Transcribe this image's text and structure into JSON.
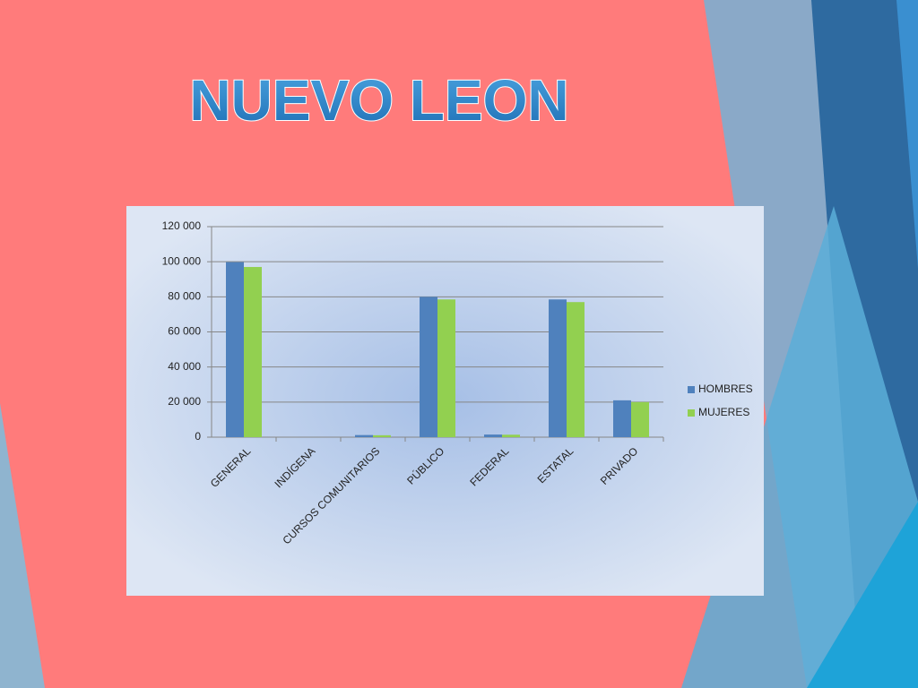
{
  "chart_data": {
    "type": "bar",
    "title": "NUEVO LEON",
    "categories": [
      "GENERAL",
      "INDÍGENA",
      "CURSOS COMUNITARIOS",
      "PÚBLICO",
      "FEDERAL",
      "ESTATAL",
      "PRIVADO"
    ],
    "series": [
      {
        "name": "HOMBRES",
        "color": "#4f81bd",
        "values": [
          99800,
          0,
          1200,
          80000,
          1500,
          78500,
          21000
        ]
      },
      {
        "name": "MUJERES",
        "color": "#92d050",
        "values": [
          97000,
          0,
          1100,
          78500,
          1400,
          77000,
          20000
        ]
      }
    ],
    "ylim": [
      0,
      120000
    ],
    "yticks": [
      0,
      {
        "value": 20000,
        "label": "20 000"
      },
      {
        "value": 40000,
        "label": "40 000"
      },
      {
        "value": 60000,
        "label": "60 000"
      },
      {
        "value": 80000,
        "label": "80 000"
      },
      {
        "value": 100000,
        "label": "100 000"
      },
      {
        "value": 120000,
        "label": "120 000"
      }
    ],
    "grid": true,
    "legend": "right"
  }
}
